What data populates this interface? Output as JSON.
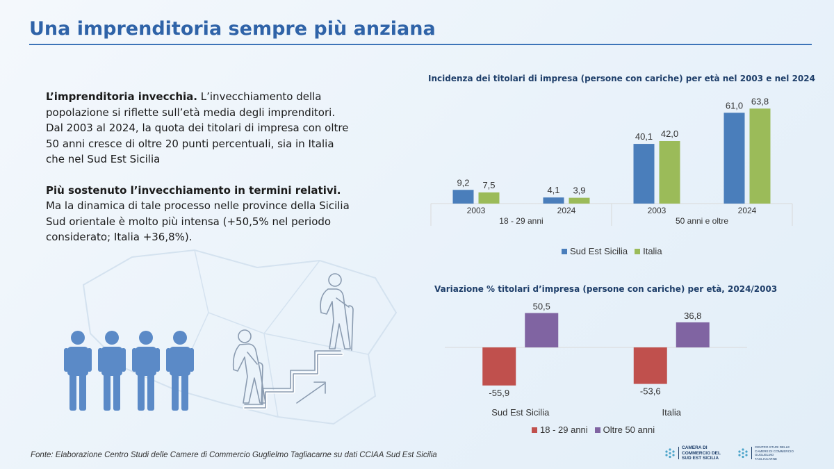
{
  "header": {
    "title": "Una imprenditoria sempre più anziana"
  },
  "text": {
    "p1_bold": "L’imprenditoria invecchia.",
    "p1_rest": " L’invecchiamento della popolazione si riflette sull’età media degli imprenditori. Dal 2003 al 2024, la quota dei titolari di impresa con oltre 50 anni cresce di oltre 20 punti percentuali, sia in Italia che nel Sud Est Sicilia",
    "p2_bold": "Più sostenuto l’invecchiamento in termini relativi.",
    "p2_rest": " Ma la dinamica di tale processo nelle province della Sicilia Sud orientale è molto più intensa (+50,5% nel periodo considerato; Italia +36,8%)."
  },
  "chart_data": [
    {
      "type": "bar",
      "title": "Incidenza dei titolari di impresa (persone con cariche) per età nel 2003 e nel 2024",
      "groups": [
        {
          "label": "18 - 29 anni",
          "categories": [
            "2003",
            "2024"
          ]
        },
        {
          "label": "50 anni e oltre",
          "categories": [
            "2003",
            "2024"
          ]
        }
      ],
      "categories": [
        "2003",
        "2024",
        "2003",
        "2024"
      ],
      "series": [
        {
          "name": "Sud Est Sicilia",
          "color": "#4a7ebb",
          "values": [
            9.2,
            4.1,
            40.1,
            61.0
          ],
          "labels": [
            "9,2",
            "4,1",
            "40,1",
            "61,0"
          ]
        },
        {
          "name": "Italia",
          "color": "#9bbb59",
          "values": [
            7.5,
            3.9,
            42.0,
            63.8
          ],
          "labels": [
            "7,5",
            "3,9",
            "42,0",
            "63,8"
          ]
        }
      ],
      "ylim": [
        0,
        70
      ],
      "legend": "bottom",
      "grid": false
    },
    {
      "type": "bar",
      "title": "Variazione % titolari d’impresa (persone con cariche) per età, 2024/2003",
      "categories": [
        "Sud Est Sicilia",
        "Italia"
      ],
      "series": [
        {
          "name": "18 - 29 anni",
          "color": "#c0504d",
          "values": [
            -55.9,
            -53.6
          ],
          "labels": [
            "-55,9",
            "-53,6"
          ]
        },
        {
          "name": "Oltre 50 anni",
          "color": "#8064a2",
          "values": [
            50.5,
            36.8
          ],
          "labels": [
            "50,5",
            "36,8"
          ]
        }
      ],
      "ylim": [
        -70,
        60
      ],
      "legend": "bottom",
      "grid": false
    }
  ],
  "footer": {
    "source": "Fonte: Elaborazione Centro Studi delle Camere di Commercio Guglielmo Tagliacarne su dati CCIAA Sud Est Sicilia",
    "logo1": "CAMERA DI COMMERCIO DEL SUD EST SICILIA",
    "logo2": "CENTRO STUDI DELLE CAMERE DI COMMERCIO GUGLIELMO TAGLIACARNE"
  },
  "icons": {
    "people": "standing-people-icon",
    "climber": "elderly-climbing-stairs-icon"
  }
}
